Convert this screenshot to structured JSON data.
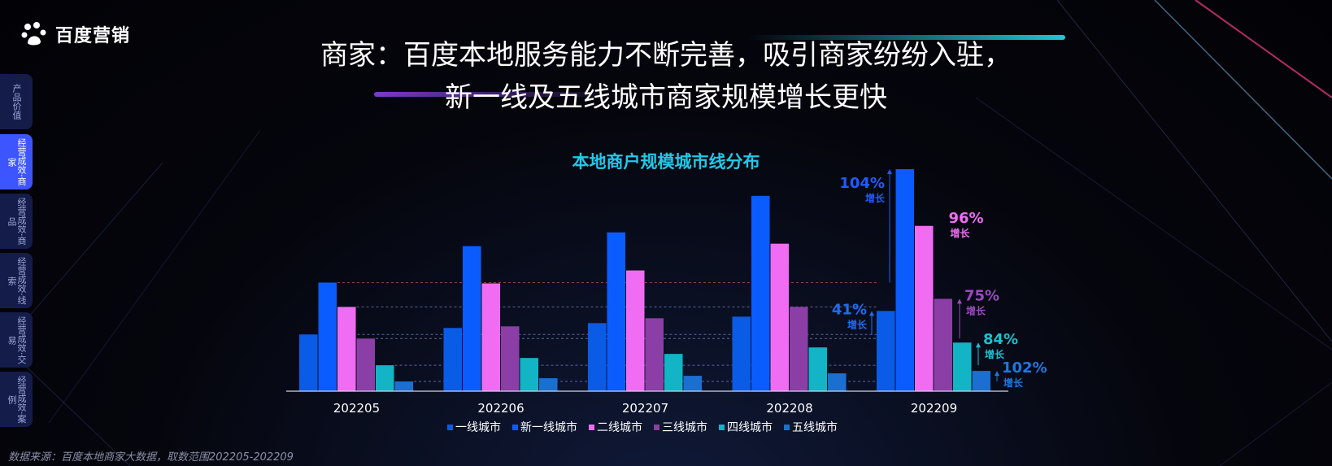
{
  "brand": {
    "name": "百度营销"
  },
  "title": {
    "line1": "商家：百度本地服务能力不断完善，吸引商家纷纷入驻，",
    "line2": "新一线及五线城市商家规模增长更快"
  },
  "sidebar": {
    "items": [
      {
        "label": "产品价值"
      },
      {
        "label": "经营成效·商家"
      },
      {
        "label": "经营成效·商品"
      },
      {
        "label": "经营成效·线索"
      },
      {
        "label": "经营成效·交易"
      },
      {
        "label": "经营成效·案例"
      }
    ],
    "active": 1
  },
  "source": "数据来源：百度本地商家大数据，取数范围202205-202209",
  "chart_data": {
    "type": "bar",
    "title": "本地商户规模城市线分布",
    "categories": [
      "202205",
      "202206",
      "202207",
      "202208",
      "202209"
    ],
    "series": [
      {
        "name": "一线城市",
        "color": "#0a5ce6",
        "values": [
          70,
          78,
          84,
          92,
          99
        ]
      },
      {
        "name": "新一线城市",
        "color": "#0b5cff",
        "values": [
          134,
          179,
          196,
          241,
          274
        ]
      },
      {
        "name": "二线城市",
        "color": "#f06cf2",
        "values": [
          104,
          133,
          149,
          182,
          204
        ]
      },
      {
        "name": "三线城市",
        "color": "#8b3ea6",
        "values": [
          65,
          80,
          90,
          104,
          114
        ]
      },
      {
        "name": "四线城市",
        "color": "#12b4c6",
        "values": [
          32,
          41,
          46,
          54,
          60
        ]
      },
      {
        "name": "五线城市",
        "color": "#1a6fd0",
        "values": [
          12,
          16,
          19,
          22,
          25
        ]
      }
    ],
    "ylim": [
      0,
      275
    ],
    "annotations": [
      {
        "series": "新一线城市",
        "pct": "104%",
        "label": "增长",
        "color": "#1f5cff"
      },
      {
        "series": "二线城市",
        "pct": "96%",
        "label": "增长",
        "color": "#f06cf2"
      },
      {
        "series": "三线城市",
        "pct": "75%",
        "label": "增长",
        "color": "#9b49bf"
      },
      {
        "series": "一线城市",
        "pct": "41%",
        "label": "增长",
        "color": "#1f6cf0"
      },
      {
        "series": "四线城市",
        "pct": "84%",
        "label": "增长",
        "color": "#1cc0d0"
      },
      {
        "series": "五线城市",
        "pct": "102%",
        "label": "增长",
        "color": "#1f78e0"
      }
    ]
  }
}
